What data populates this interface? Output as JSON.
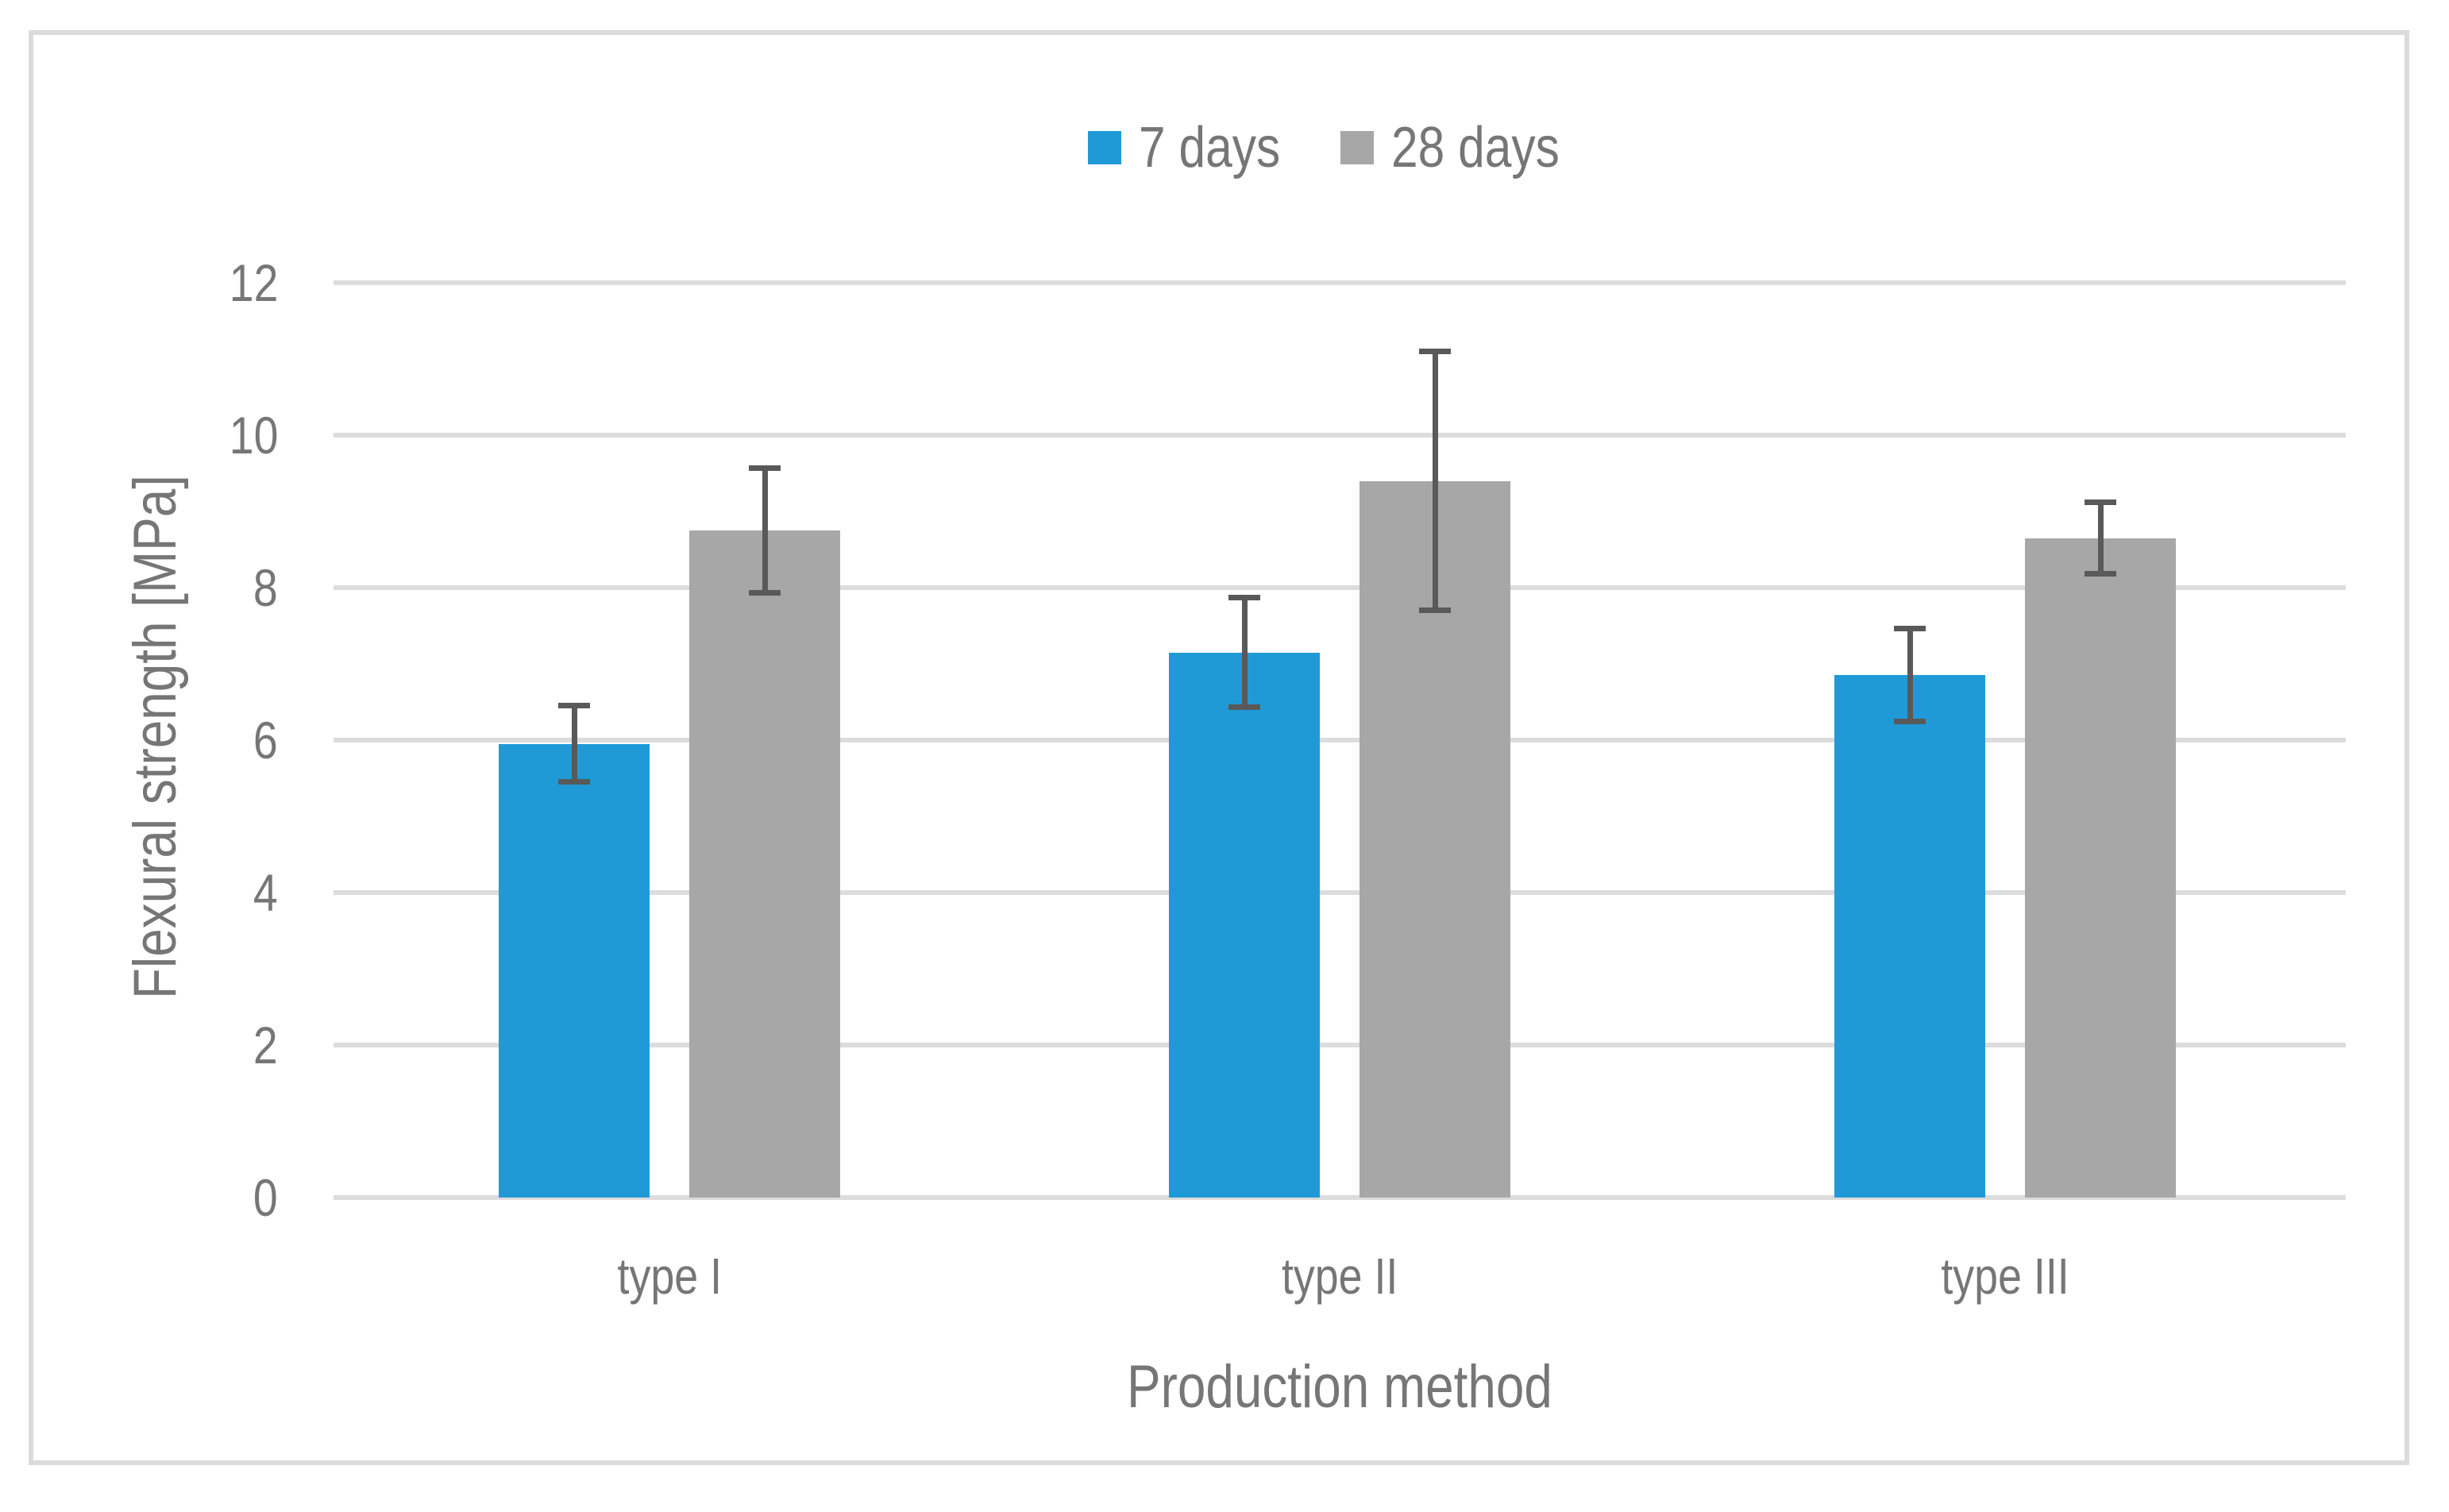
{
  "chart_data": {
    "type": "bar",
    "title": "",
    "categories": [
      "type I",
      "type II",
      "type III"
    ],
    "series": [
      {
        "name": "7 days",
        "color": "#209AD7",
        "values": [
          5.95,
          7.15,
          6.85
        ],
        "errors": [
          0.5,
          0.72,
          0.61
        ]
      },
      {
        "name": "28 days",
        "color": "#A7A7A7",
        "values": [
          8.75,
          9.4,
          8.65
        ],
        "errors": [
          0.82,
          1.7,
          0.47
        ]
      }
    ],
    "xlabel": "Production method",
    "ylabel": "Flexural strength [MPa]",
    "ylim": [
      0,
      12
    ],
    "yticks": [
      0,
      2,
      4,
      6,
      8,
      10,
      12
    ],
    "grid": "horizontal",
    "legend_position": "top-center",
    "error_bars": true,
    "colors": {
      "error_bar": "#595959",
      "gridline": "#DCDCDC",
      "text": "#767676",
      "frame_border": "#DBDBDB",
      "background": "#FFFFFF"
    }
  }
}
